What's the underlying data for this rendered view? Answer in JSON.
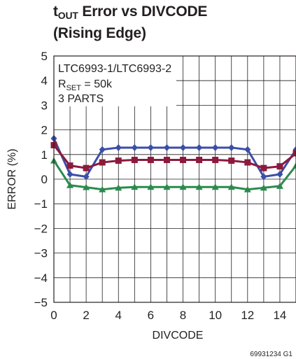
{
  "title": {
    "line1_prefix": "t",
    "line1_subscript": "OUT",
    "line1_rest": " Error vs DIVCODE",
    "line2": "(Rising Edge)"
  },
  "chart_data": {
    "type": "line",
    "title": "tOUT Error vs DIVCODE (Rising Edge)",
    "xlabel": "DIVCODE",
    "ylabel": "ERROR (%)",
    "xlim": [
      0,
      15
    ],
    "ylim": [
      -5,
      5
    ],
    "x_ticks": [
      "0",
      "2",
      "4",
      "6",
      "8",
      "10",
      "12",
      "14"
    ],
    "y_ticks": [
      "5",
      "4",
      "3",
      "2",
      "1",
      "0",
      "−1",
      "−2",
      "−3",
      "−4",
      "−5"
    ],
    "grid": true,
    "annotation": {
      "line1": "LTC6993-1/LTC6993-2",
      "line2_prefix": "R",
      "line2_subscript": "SET",
      "line2_rest": " = 50k",
      "line3": "3 PARTS"
    },
    "x": [
      0,
      1,
      2,
      3,
      4,
      5,
      6,
      7,
      8,
      9,
      10,
      11,
      12,
      13,
      14,
      15
    ],
    "series": [
      {
        "color": "#3b4ea8",
        "marker": "diamond",
        "values": [
          1.65,
          0.2,
          0.1,
          1.2,
          1.28,
          1.28,
          1.28,
          1.28,
          1.28,
          1.28,
          1.28,
          1.28,
          1.2,
          0.1,
          0.2,
          1.2
        ]
      },
      {
        "color": "#8c1a3d",
        "marker": "square",
        "values": [
          1.38,
          0.55,
          0.45,
          0.68,
          0.75,
          0.78,
          0.78,
          0.78,
          0.78,
          0.78,
          0.78,
          0.75,
          0.68,
          0.45,
          0.52,
          1.05
        ]
      },
      {
        "color": "#2b8a4e",
        "marker": "triangle",
        "values": [
          0.75,
          -0.25,
          -0.33,
          -0.42,
          -0.35,
          -0.32,
          -0.32,
          -0.32,
          -0.32,
          -0.32,
          -0.32,
          -0.32,
          -0.42,
          -0.35,
          -0.28,
          0.55
        ]
      }
    ]
  },
  "footer": {
    "code": "69931234 G1"
  }
}
